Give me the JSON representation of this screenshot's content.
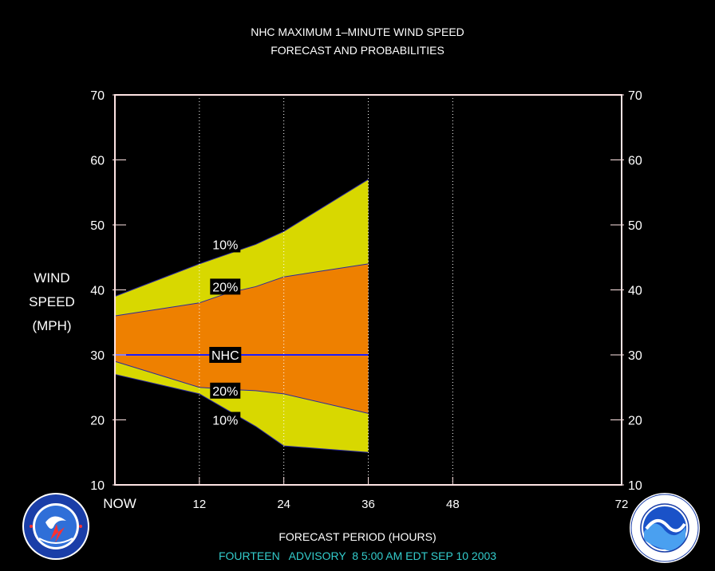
{
  "header": {
    "title_line1": "NHC MAXIMUM 1–MINUTE WIND SPEED",
    "title_line2": "FORECAST AND PROBABILITIES"
  },
  "ylabel": {
    "line1": "WIND",
    "line2": "SPEED",
    "line3": "(MPH)"
  },
  "xlabel": "FORECAST PERIOD (HOURS)",
  "advisory": "FOURTEEN   ADVISORY  8 5:00 AM EDT SEP 10 2003",
  "colors": {
    "background": "#000000",
    "outer_band": "#d8d800",
    "inner_band": "#ee8000",
    "nhc_line": "#1c1cff",
    "frame": "#ffe4e4",
    "advisory_text": "#33cccc"
  },
  "logos": {
    "left": "nws-seal-icon",
    "right": "noaa-seal-icon"
  },
  "chart_data": {
    "type": "area",
    "x_ticks": [
      0,
      12,
      24,
      36,
      48,
      72
    ],
    "x_tick_labels": [
      "NOW",
      "12",
      "24",
      "36",
      "48",
      "72"
    ],
    "xlim": [
      0,
      72
    ],
    "ylim": [
      10,
      70
    ],
    "y_ticks": [
      10,
      20,
      30,
      40,
      50,
      60,
      70
    ],
    "gridlines": "dotted vertical at 12, 24, 36, 48",
    "x": [
      0,
      12,
      16,
      20,
      24,
      36
    ],
    "series": [
      {
        "name": "10%",
        "upper": [
          39,
          44,
          45.5,
          47,
          49,
          57
        ],
        "lower": [
          27,
          24,
          21.5,
          19,
          16,
          15
        ]
      },
      {
        "name": "20%",
        "upper": [
          36,
          38,
          39.5,
          40.5,
          42,
          44
        ],
        "lower": [
          29,
          25,
          24.7,
          24.5,
          24,
          21
        ]
      },
      {
        "name": "NHC",
        "values": [
          30,
          30,
          30,
          30,
          30,
          30
        ]
      }
    ],
    "band_labels": [
      {
        "text": "10%",
        "x": 15,
        "y": 47
      },
      {
        "text": "20%",
        "x": 15,
        "y": 40.5
      },
      {
        "text": "NHC",
        "x": 15,
        "y": 30
      },
      {
        "text": "20%",
        "x": 15,
        "y": 24.5
      },
      {
        "text": "10%",
        "x": 15,
        "y": 20
      }
    ]
  }
}
